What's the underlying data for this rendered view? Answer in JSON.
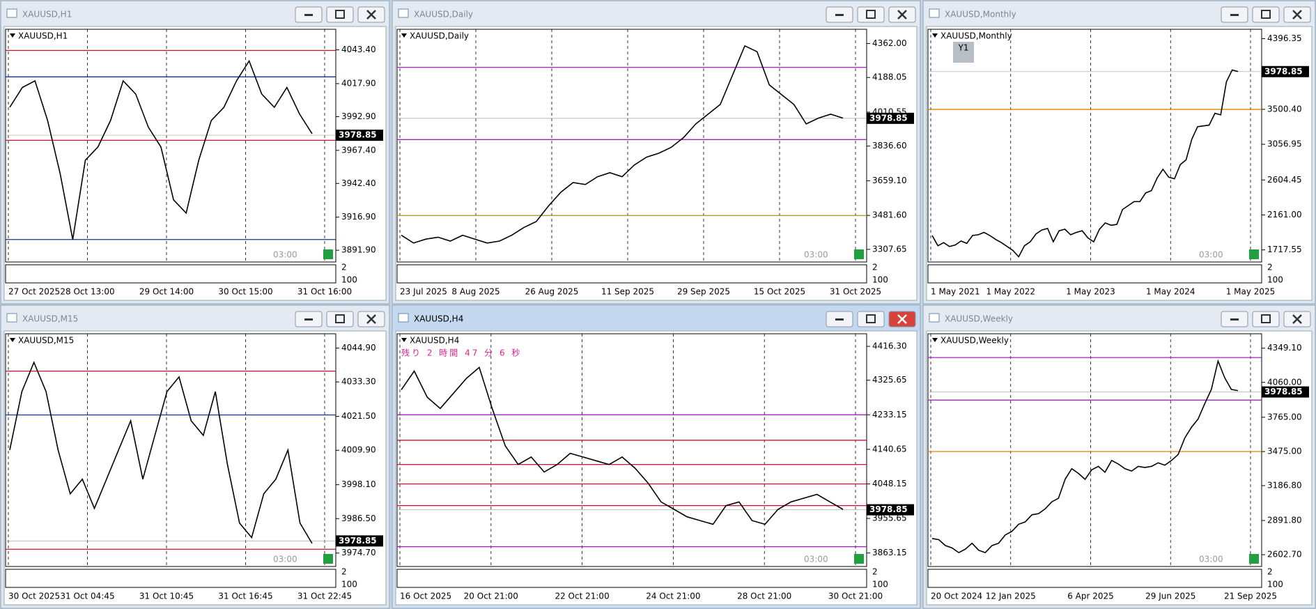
{
  "chart_data": [
    {
      "type": "line",
      "title": "XAUUSD,H1",
      "color": "#000000",
      "ylim": [
        3883,
        4059
      ],
      "yticks": [
        {
          "value": 4043.4,
          "label": "4043.40"
        },
        {
          "value": 4017.9,
          "label": "4017.90"
        },
        {
          "value": 3992.9,
          "label": "3992.90"
        },
        {
          "value": 3967.4,
          "label": "3967.40"
        },
        {
          "value": 3942.4,
          "label": "3942.40"
        },
        {
          "value": 3916.9,
          "label": "3916.90"
        },
        {
          "value": 3891.9,
          "label": "3891.90"
        }
      ],
      "price": {
        "value": 3978.85,
        "label": "3978.85"
      },
      "xtick_labels": [
        "27 Oct 2025",
        "28 Oct 13:00",
        "29 Oct 14:00",
        "30 Oct 15:00",
        "31 Oct 16:00"
      ],
      "values": [
        4000,
        4015,
        4020,
        3990,
        3950,
        3900,
        3960,
        3970,
        3990,
        4020,
        4010,
        3985,
        3970,
        3930,
        3920,
        3960,
        3990,
        4000,
        4020,
        4035,
        4010,
        4000,
        4015,
        3995,
        3980
      ],
      "levels": [
        {
          "value": 4043,
          "color": "#d01030"
        },
        {
          "value": 4023,
          "color": "#1030a0"
        },
        {
          "value": 3975,
          "color": "#d01030"
        },
        {
          "value": 3900,
          "color": "#1030a0"
        }
      ],
      "marker_text": "03:00",
      "sub_labels": [
        "2",
        "100"
      ]
    },
    {
      "type": "line",
      "title": "XAUUSD,Daily",
      "color": "#000000",
      "ylim": [
        3243,
        4435
      ],
      "yticks": [
        {
          "value": 4362,
          "label": "4362.00"
        },
        {
          "value": 4188.05,
          "label": "4188.05"
        },
        {
          "value": 4010.55,
          "label": "4010.55"
        },
        {
          "value": 3836.6,
          "label": "3836.60"
        },
        {
          "value": 3659.1,
          "label": "3659.10"
        },
        {
          "value": 3481.6,
          "label": "3481.60"
        },
        {
          "value": 3307.65,
          "label": "3307.65"
        }
      ],
      "price": {
        "value": 3978.85,
        "label": "3978.85"
      },
      "xtick_labels": [
        "23 Jul 2025",
        "8 Aug 2025",
        "26 Aug 2025",
        "11 Sep 2025",
        "29 Sep 2025",
        "15 Oct 2025",
        "31 Oct 2025"
      ],
      "values": [
        3380,
        3340,
        3360,
        3370,
        3350,
        3380,
        3360,
        3340,
        3350,
        3380,
        3420,
        3450,
        3530,
        3600,
        3650,
        3640,
        3680,
        3700,
        3680,
        3740,
        3780,
        3800,
        3830,
        3880,
        3950,
        4000,
        4050,
        4200,
        4350,
        4320,
        4150,
        4100,
        4050,
        3950,
        3980,
        4000,
        3980
      ],
      "levels": [
        {
          "value": 4240,
          "color": "#a020c0"
        },
        {
          "value": 3870,
          "color": "#a020c0"
        },
        {
          "value": 3481,
          "color": "#b0a020"
        }
      ],
      "marker_text": "03:00",
      "sub_labels": [
        "2",
        "100"
      ]
    },
    {
      "type": "line",
      "title": "XAUUSD,Monthly",
      "color": "#000000",
      "ylim": [
        1564,
        4516
      ],
      "yticks": [
        {
          "value": 4396.35,
          "label": "4396.35"
        },
        {
          "value": 3500.4,
          "label": "3500.40"
        },
        {
          "value": 3056.95,
          "label": "3056.95"
        },
        {
          "value": 2604.45,
          "label": "2604.45"
        },
        {
          "value": 2161,
          "label": "2161.00"
        },
        {
          "value": 1717.55,
          "label": "1717.55"
        }
      ],
      "price": {
        "value": 3978.85,
        "label": "3978.85"
      },
      "xtick_labels": [
        "1 May 2021",
        "1 May 2022",
        "1 May 2023",
        "1 May 2024",
        "1 May 2025"
      ],
      "values": [
        1900,
        1770,
        1810,
        1760,
        1780,
        1830,
        1800,
        1900,
        1910,
        1940,
        1900,
        1850,
        1810,
        1760,
        1710,
        1630,
        1770,
        1820,
        1920,
        1970,
        1990,
        1820,
        1960,
        1980,
        1910,
        1940,
        1960,
        1870,
        1820,
        1980,
        2060,
        2030,
        2040,
        2230,
        2280,
        2330,
        2330,
        2440,
        2470,
        2630,
        2740,
        2640,
        2620,
        2800,
        2860,
        3120,
        3280,
        3290,
        3300,
        3450,
        3430,
        3850,
        4000,
        3980
      ],
      "levels": [
        {
          "value": 3500,
          "color": "#e08000"
        }
      ],
      "marker_text": "03:00",
      "sub_labels": [
        "2",
        "100"
      ],
      "badge": "Y1"
    },
    {
      "type": "line",
      "title": "XAUUSD,M15",
      "color": "#000000",
      "ylim": [
        3970.1,
        4049.8
      ],
      "yticks": [
        {
          "value": 4044.9,
          "label": "4044.90"
        },
        {
          "value": 4033.3,
          "label": "4033.30"
        },
        {
          "value": 4021.5,
          "label": "4021.50"
        },
        {
          "value": 4009.9,
          "label": "4009.90"
        },
        {
          "value": 3998.1,
          "label": "3998.10"
        },
        {
          "value": 3986.5,
          "label": "3986.50"
        },
        {
          "value": 3974.7,
          "label": "3974.70"
        }
      ],
      "price": {
        "value": 3978.85,
        "label": "3978.85"
      },
      "xtick_labels": [
        "30 Oct 2025",
        "31 Oct 04:45",
        "31 Oct 10:45",
        "31 Oct 16:45",
        "31 Oct 22:45"
      ],
      "values": [
        4010,
        4030,
        4040,
        4030,
        4010,
        3995,
        4000,
        3990,
        4000,
        4010,
        4020,
        4000,
        4015,
        4030,
        4035,
        4020,
        4015,
        4030,
        4005,
        3985,
        3980,
        3995,
        4000,
        4010,
        3985,
        3978
      ],
      "levels": [
        {
          "value": 4037,
          "color": "#d01030"
        },
        {
          "value": 4022,
          "color": "#1030a0"
        },
        {
          "value": 3976,
          "color": "#d01030"
        }
      ],
      "marker_text": "03:00",
      "sub_labels": [
        "2",
        "100"
      ]
    },
    {
      "type": "line",
      "title": "XAUUSD,H4",
      "color": "#000000",
      "ylim": [
        3827,
        4450
      ],
      "yticks": [
        {
          "value": 4416.3,
          "label": "4416.30"
        },
        {
          "value": 4325.65,
          "label": "4325.65"
        },
        {
          "value": 4233.15,
          "label": "4233.15"
        },
        {
          "value": 4140.65,
          "label": "4140.65"
        },
        {
          "value": 4048.15,
          "label": "4048.15"
        },
        {
          "value": 3955.65,
          "label": "3955.65"
        },
        {
          "value": 3863.15,
          "label": "3863.15"
        }
      ],
      "price": {
        "value": 3978.85,
        "label": "3978.85"
      },
      "xtick_labels": [
        "16 Oct 2025",
        "20 Oct 21:00",
        "22 Oct 21:00",
        "24 Oct 21:00",
        "28 Oct 21:00",
        "30 Oct 21:00"
      ],
      "values": [
        4300,
        4350,
        4280,
        4250,
        4290,
        4330,
        4360,
        4250,
        4150,
        4100,
        4120,
        4080,
        4100,
        4130,
        4120,
        4110,
        4100,
        4120,
        4090,
        4050,
        4000,
        3980,
        3960,
        3950,
        3940,
        3990,
        4000,
        3950,
        3940,
        3980,
        4000,
        4010,
        4020,
        4000,
        3980
      ],
      "levels": [
        {
          "value": 4233,
          "color": "#a020c0"
        },
        {
          "value": 4165,
          "color": "#d01030"
        },
        {
          "value": 4100,
          "color": "#d01030"
        },
        {
          "value": 4048,
          "color": "#d01030"
        },
        {
          "value": 3990,
          "color": "#d01030"
        },
        {
          "value": 3880,
          "color": "#a020c0"
        }
      ],
      "marker_text": "03:00",
      "sub_labels": [
        "2",
        "100"
      ],
      "timer": "残り 2 時間 47 分 6 秒",
      "active": true
    },
    {
      "type": "line",
      "title": "XAUUSD,Weekly",
      "color": "#000000",
      "ylim": [
        2503,
        4471
      ],
      "yticks": [
        {
          "value": 4349.1,
          "label": "4349.10"
        },
        {
          "value": 4060,
          "label": "4060.00"
        },
        {
          "value": 3765,
          "label": "3765.00"
        },
        {
          "value": 3475,
          "label": "3475.00"
        },
        {
          "value": 3186.8,
          "label": "3186.80"
        },
        {
          "value": 2891.8,
          "label": "2891.80"
        },
        {
          "value": 2602.7,
          "label": "2602.70"
        }
      ],
      "price": {
        "value": 3978.85,
        "label": "3978.85"
      },
      "xtick_labels": [
        "20 Oct 2024",
        "12 Jan 2025",
        "6 Apr 2025",
        "29 Jun 2025",
        "21 Sep 2025"
      ],
      "values": [
        2740,
        2730,
        2680,
        2660,
        2620,
        2650,
        2700,
        2640,
        2620,
        2680,
        2700,
        2770,
        2800,
        2860,
        2880,
        2940,
        2950,
        2990,
        3050,
        3080,
        3240,
        3330,
        3290,
        3240,
        3320,
        3350,
        3300,
        3400,
        3370,
        3330,
        3310,
        3350,
        3340,
        3350,
        3380,
        3360,
        3400,
        3450,
        3590,
        3680,
        3750,
        3880,
        4000,
        4240,
        4100,
        4000,
        3990
      ],
      "levels": [
        {
          "value": 4270,
          "color": "#a020c0"
        },
        {
          "value": 3910,
          "color": "#a020c0"
        },
        {
          "value": 3475,
          "color": "#e08000"
        }
      ],
      "marker_text": "03:00",
      "sub_labels": [
        "2",
        "100"
      ]
    }
  ]
}
